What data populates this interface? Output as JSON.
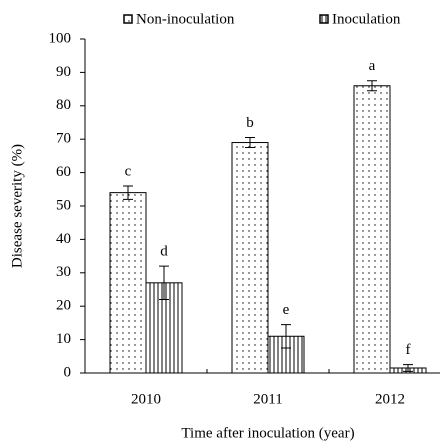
{
  "chart_data": {
    "type": "bar",
    "y_label": "Disease severity (%)",
    "x_label": "Time after inoculation (year)",
    "categories": [
      "2010",
      "2011",
      "2012"
    ],
    "series": [
      {
        "name": "Non-inoculation",
        "color": "#000000",
        "values": [
          54,
          69,
          86
        ],
        "errors": [
          2,
          1.5,
          1.5
        ],
        "labels": [
          "c",
          "b",
          "a"
        ]
      },
      {
        "name": "Inoculation",
        "color": "#000000",
        "values": [
          27,
          11,
          1.5
        ],
        "errors": [
          5,
          3.5,
          1
        ],
        "labels": [
          "d",
          "e",
          "f"
        ]
      }
    ],
    "ylim": [
      0,
      100
    ],
    "yticks": [
      0,
      10,
      20,
      30,
      40,
      50,
      60,
      70,
      80,
      90,
      100
    ],
    "legend": "top"
  }
}
